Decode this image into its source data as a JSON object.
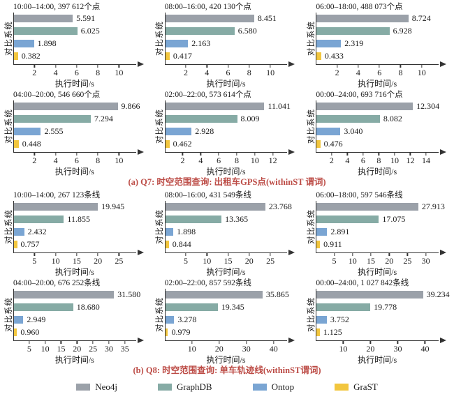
{
  "figure": {
    "legend": {
      "items": [
        {
          "label": "Neo4j",
          "color": "#9ba1a9"
        },
        {
          "label": "GraphDB",
          "color": "#86aba5"
        },
        {
          "label": "Ontop",
          "color": "#7aa5d3"
        },
        {
          "label": "GraST",
          "color": "#f2c63e"
        }
      ]
    },
    "caption_color": "#bc4b45",
    "axis_color": "#333333"
  },
  "chart_data": [
    {
      "type": "bar",
      "orientation": "horizontal",
      "group": "Q7",
      "caption": "(a) Q7: 时空范围查询: 出租车GPS点(withinST 谓词)",
      "series_names": [
        "Neo4j",
        "GraphDB",
        "Ontop",
        "GraST"
      ],
      "ylabel": "对比系统",
      "xlabel": "执行时间/s",
      "legend_position": "bottom",
      "grid": false,
      "subplots": [
        {
          "title": "10:00–14:00, 397 612个点",
          "values": [
            "5.591",
            "6.025",
            "1.898",
            "0.382"
          ],
          "ticks": [
            2,
            4,
            6,
            8,
            10
          ],
          "xmax": 11.6
        },
        {
          "title": "08:00–16:00, 420 130个点",
          "values": [
            "8.451",
            "6.580",
            "2.163",
            "0.417"
          ],
          "ticks": [
            2,
            4,
            6,
            8,
            10
          ],
          "xmax": 11.6
        },
        {
          "title": "06:00–18:00, 488 073个点",
          "values": [
            "8.724",
            "6.928",
            "2.319",
            "0.433"
          ],
          "ticks": [
            2,
            4,
            6,
            8,
            10
          ],
          "xmax": 11.6
        },
        {
          "title": "04:00–20:00, 546 660个点",
          "values": [
            "9.866",
            "7.294",
            "2.555",
            "0.448"
          ],
          "ticks": [
            2,
            4,
            6,
            8,
            10
          ],
          "xmax": 11.6
        },
        {
          "title": "02:00–22:00, 573 614个点",
          "values": [
            "11.041",
            "8.009",
            "2.928",
            "0.462"
          ],
          "ticks": [
            2,
            4,
            6,
            8,
            10,
            12
          ],
          "xmax": 13.6
        },
        {
          "title": "00:00–24:00, 693 716个点",
          "values": [
            "12.304",
            "8.082",
            "3.040",
            "0.476"
          ],
          "ticks": [
            2,
            4,
            6,
            8,
            10,
            12,
            14
          ],
          "xmax": 15.6
        }
      ]
    },
    {
      "type": "bar",
      "orientation": "horizontal",
      "group": "Q8",
      "caption": "(b) Q8: 时空范围查询: 单车轨迹线(withinST谓词)",
      "series_names": [
        "Neo4j",
        "GraphDB",
        "Ontop",
        "GraST"
      ],
      "ylabel": "对比系统",
      "xlabel": "执行时间/s",
      "legend_position": "bottom",
      "grid": false,
      "subplots": [
        {
          "title": "10:00–14:00, 267 123条线",
          "values": [
            "19.945",
            "11.855",
            "2.432",
            "0.757"
          ],
          "ticks": [
            5,
            10,
            15,
            20,
            25
          ],
          "xmax": 29
        },
        {
          "title": "08:00–16:00, 431 549条线",
          "values": [
            "23.768",
            "13.365",
            "1.898",
            "0.844"
          ],
          "ticks": [
            5,
            10,
            15,
            20,
            25
          ],
          "xmax": 29
        },
        {
          "title": "06:00–18:00, 597 546条线",
          "values": [
            "27.913",
            "17.075",
            "2.891",
            "0.911"
          ],
          "ticks": [
            5,
            10,
            15,
            20,
            25,
            30
          ],
          "xmax": 33.5
        },
        {
          "title": "04:00–20:00, 676 252条线",
          "values": [
            "31.580",
            "18.680",
            "2.949",
            "0.960"
          ],
          "ticks": [
            5,
            10,
            15,
            20,
            25,
            30,
            35
          ],
          "xmax": 38.5
        },
        {
          "title": "02:00–22:00, 857 592条线",
          "values": [
            "35.865",
            "19.345",
            "3.278",
            "0.979"
          ],
          "ticks": [
            10,
            20,
            30,
            40
          ],
          "xmax": 45
        },
        {
          "title": "00:00–24:00, 1 027 842条线",
          "values": [
            "39.234",
            "19.778",
            "3.752",
            "1.125"
          ],
          "ticks": [
            10,
            20,
            30,
            40
          ],
          "xmax": 45
        }
      ]
    }
  ]
}
